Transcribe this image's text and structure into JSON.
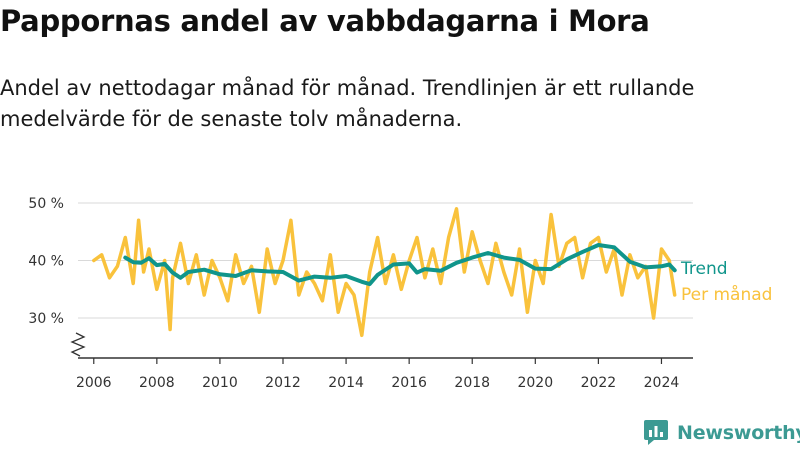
{
  "title": "Pappornas andel av vabbdagarna i Mora",
  "subtitle": "Andel av nettodagar månad för månad. Trendlinjen är ett rullande medelvärde för de senaste tolv månaderna.",
  "logo": {
    "text": "Newsworthy",
    "icon": "bar-chart-logo-icon"
  },
  "colors": {
    "monthly": "#f9c23c",
    "trend": "#10958b",
    "grid": "#d9d9d9",
    "axis": "#333333",
    "logo": "#3c9a93"
  },
  "chart_data": {
    "type": "line",
    "title": "Pappornas andel av vabbdagarna i Mora",
    "xlabel": "",
    "ylabel": "",
    "y_unit": "%",
    "xlim": [
      2005.5,
      2025.0
    ],
    "ylim": [
      27,
      50
    ],
    "y_ticks": [
      30,
      40,
      50
    ],
    "y_tick_labels": [
      "30 %",
      "40 %",
      "50 %"
    ],
    "x_ticks": [
      2006,
      2008,
      2010,
      2012,
      2014,
      2016,
      2018,
      2020,
      2022,
      2024
    ],
    "x_tick_labels": [
      "2006",
      "2008",
      "2010",
      "2012",
      "2014",
      "2016",
      "2018",
      "2020",
      "2022",
      "2024"
    ],
    "grid": true,
    "axis_break": true,
    "legend": "right-end labels",
    "series": [
      {
        "name": "Per månad",
        "x": [
          2006.0,
          2006.25,
          2006.5,
          2006.75,
          2007.0,
          2007.25,
          2007.42,
          2007.58,
          2007.75,
          2008.0,
          2008.25,
          2008.42,
          2008.5,
          2008.75,
          2009.0,
          2009.25,
          2009.5,
          2009.75,
          2010.0,
          2010.25,
          2010.5,
          2010.75,
          2011.0,
          2011.25,
          2011.5,
          2011.75,
          2012.0,
          2012.25,
          2012.5,
          2012.75,
          2013.0,
          2013.25,
          2013.5,
          2013.75,
          2014.0,
          2014.25,
          2014.5,
          2014.75,
          2015.0,
          2015.25,
          2015.5,
          2015.75,
          2016.0,
          2016.25,
          2016.5,
          2016.75,
          2017.0,
          2017.25,
          2017.5,
          2017.75,
          2018.0,
          2018.25,
          2018.5,
          2018.75,
          2019.0,
          2019.25,
          2019.5,
          2019.75,
          2020.0,
          2020.25,
          2020.5,
          2020.75,
          2021.0,
          2021.25,
          2021.5,
          2021.75,
          2022.0,
          2022.25,
          2022.5,
          2022.75,
          2023.0,
          2023.25,
          2023.5,
          2023.75,
          2024.0,
          2024.25,
          2024.42
        ],
        "values": [
          40,
          41,
          37,
          39,
          44,
          36,
          47,
          38,
          42,
          35,
          40,
          28,
          37,
          43,
          36,
          41,
          34,
          40,
          37,
          33,
          41,
          36,
          39,
          31,
          42,
          36,
          40,
          47,
          34,
          38,
          36,
          33,
          41,
          31,
          36,
          34,
          27,
          38,
          44,
          36,
          41,
          35,
          40,
          44,
          37,
          42,
          36,
          44,
          49,
          38,
          45,
          40,
          36,
          43,
          38,
          34,
          42,
          31,
          40,
          36,
          48,
          39,
          43,
          44,
          37,
          43,
          44,
          38,
          42,
          34,
          41,
          37,
          39,
          30,
          42,
          40,
          34
        ]
      },
      {
        "name": "Trend",
        "x": [
          2007.0,
          2007.25,
          2007.5,
          2007.75,
          2008.0,
          2008.25,
          2008.5,
          2008.75,
          2009.0,
          2009.5,
          2010.0,
          2010.5,
          2011.0,
          2011.5,
          2012.0,
          2012.5,
          2013.0,
          2013.5,
          2014.0,
          2014.5,
          2014.75,
          2015.0,
          2015.5,
          2016.0,
          2016.25,
          2016.5,
          2017.0,
          2017.5,
          2018.0,
          2018.5,
          2019.0,
          2019.5,
          2020.0,
          2020.5,
          2021.0,
          2021.5,
          2022.0,
          2022.5,
          2023.0,
          2023.5,
          2024.0,
          2024.25,
          2024.42
        ],
        "values": [
          40.5,
          39.7,
          39.6,
          40.4,
          39.2,
          39.4,
          37.9,
          37.0,
          38.0,
          38.4,
          37.6,
          37.3,
          38.3,
          38.1,
          38.0,
          36.5,
          37.2,
          37.0,
          37.3,
          36.3,
          35.9,
          37.5,
          39.3,
          39.5,
          37.9,
          38.5,
          38.2,
          39.6,
          40.5,
          41.3,
          40.5,
          40.1,
          38.6,
          38.5,
          40.2,
          41.5,
          42.7,
          42.3,
          39.8,
          38.8,
          39.0,
          39.3,
          38.3
        ]
      }
    ]
  }
}
